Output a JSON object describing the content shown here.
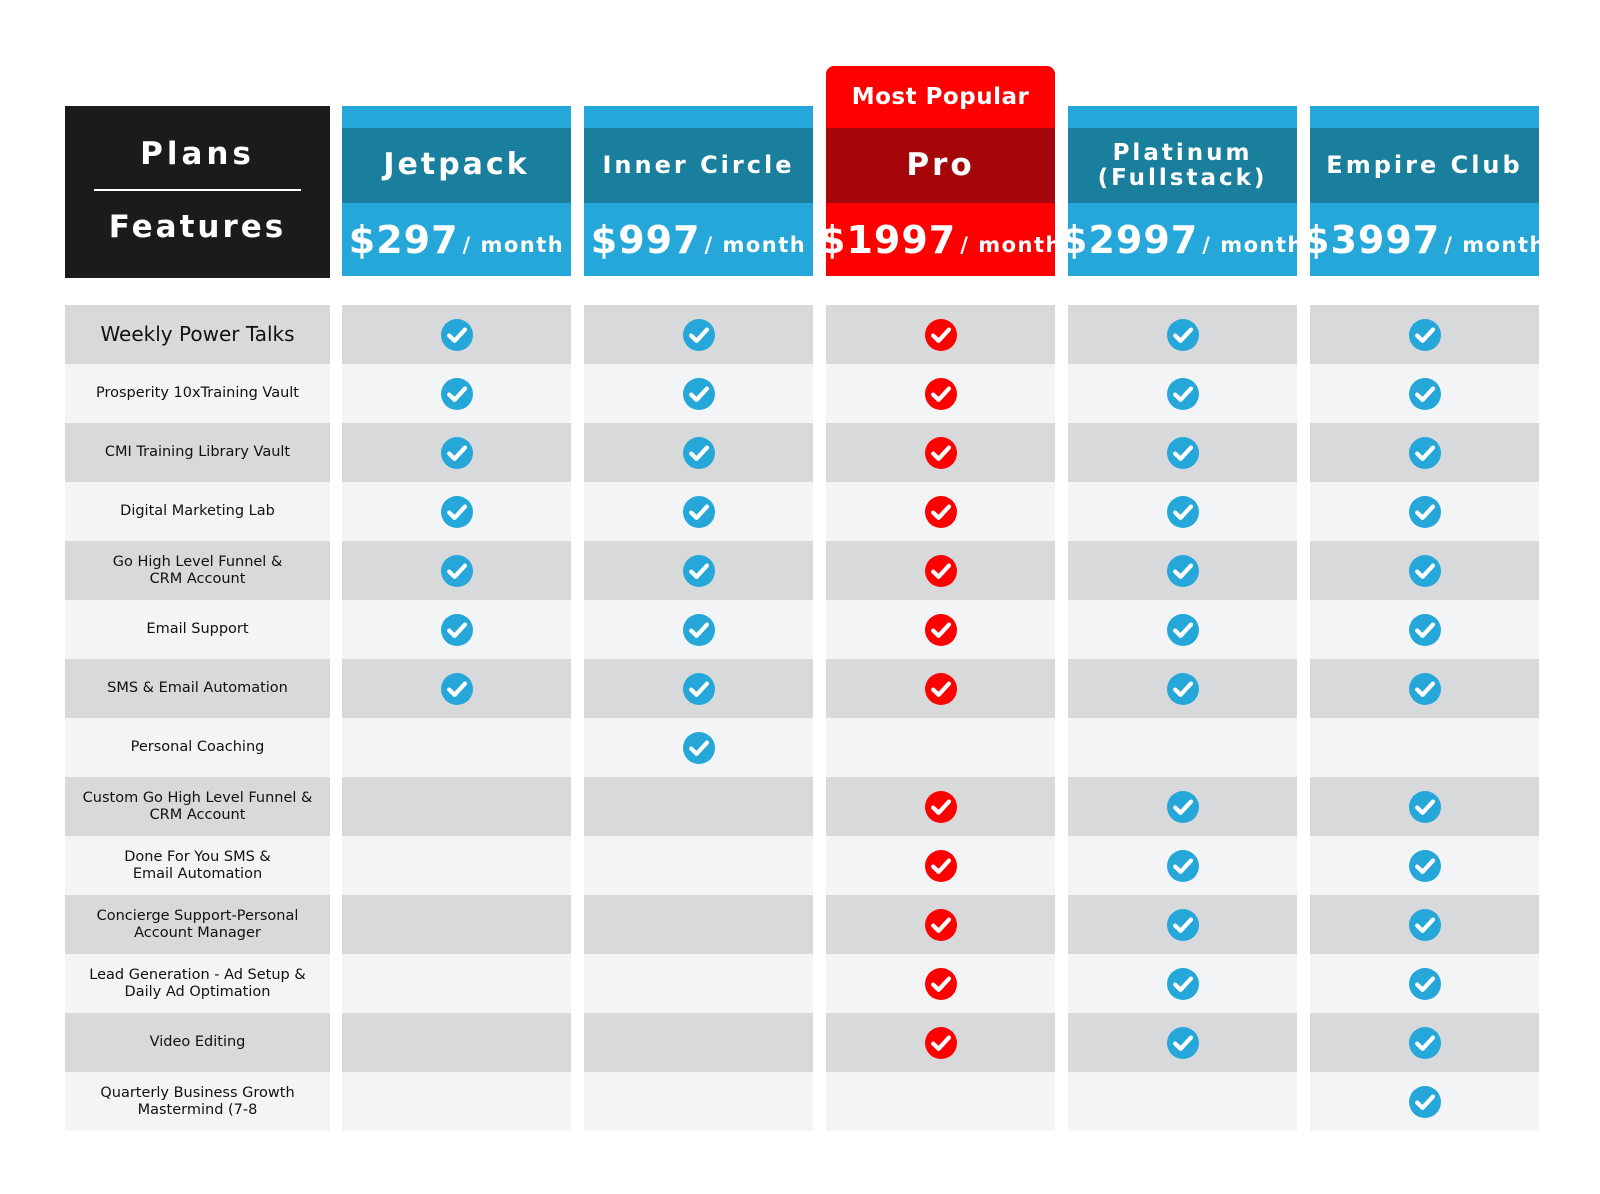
{
  "header": {
    "plans_label": "Plans",
    "features_label": "Features"
  },
  "plans": [
    {
      "name": "Jetpack",
      "price": "$297",
      "period": "/ month",
      "popular": false,
      "badge": ""
    },
    {
      "name": "Inner Circle",
      "price": "$997",
      "period": "/ month",
      "popular": false,
      "badge": ""
    },
    {
      "name": "Pro",
      "price": "$1997",
      "period": "/ month",
      "popular": true,
      "badge": "Most Popular"
    },
    {
      "name": "Platinum (Fullstack)",
      "price": "$2997",
      "period": "/ month",
      "popular": false,
      "badge": ""
    },
    {
      "name": "Empire Club",
      "price": "$3997",
      "period": "/ month",
      "popular": false,
      "badge": ""
    }
  ],
  "features": [
    {
      "label": "Weekly Power Talks",
      "included": [
        true,
        true,
        true,
        true,
        true
      ]
    },
    {
      "label": "Prosperity 10xTraining Vault",
      "included": [
        true,
        true,
        true,
        true,
        true
      ]
    },
    {
      "label": "CMI Training Library Vault",
      "included": [
        true,
        true,
        true,
        true,
        true
      ]
    },
    {
      "label": "Digital Marketing Lab",
      "included": [
        true,
        true,
        true,
        true,
        true
      ]
    },
    {
      "label": "Go High Level Funnel & CRM Account",
      "included": [
        true,
        true,
        true,
        true,
        true
      ]
    },
    {
      "label": "Email Support",
      "included": [
        true,
        true,
        true,
        true,
        true
      ]
    },
    {
      "label": "SMS & Email Automation",
      "included": [
        true,
        true,
        true,
        true,
        true
      ]
    },
    {
      "label": "Personal Coaching",
      "included": [
        false,
        true,
        false,
        false,
        false
      ]
    },
    {
      "label": "Custom Go High Level Funnel & CRM Account",
      "included": [
        false,
        false,
        true,
        true,
        true
      ]
    },
    {
      "label": "Done For You SMS & Email Automation",
      "included": [
        false,
        false,
        true,
        true,
        true
      ]
    },
    {
      "label": "Concierge Support-Personal Account Manager",
      "included": [
        false,
        false,
        true,
        true,
        true
      ]
    },
    {
      "label": "Lead Generation - Ad Setup & Daily Ad Optimation",
      "included": [
        false,
        false,
        true,
        true,
        true
      ]
    },
    {
      "label": "Video Editing",
      "included": [
        false,
        false,
        true,
        true,
        true
      ]
    },
    {
      "label": "Quarterly Business Growth Mastermind (7-8",
      "included": [
        false,
        false,
        false,
        false,
        true
      ]
    }
  ],
  "colors": {
    "check_standard": "#25a7da",
    "check_popular": "#ff0000",
    "header_dark": "#1b1b1b",
    "plan_name_band": "#1a7f9c",
    "plan_price_band": "#25a7da",
    "popular_name_band": "#a5060a",
    "popular_accent": "#ff0000"
  }
}
